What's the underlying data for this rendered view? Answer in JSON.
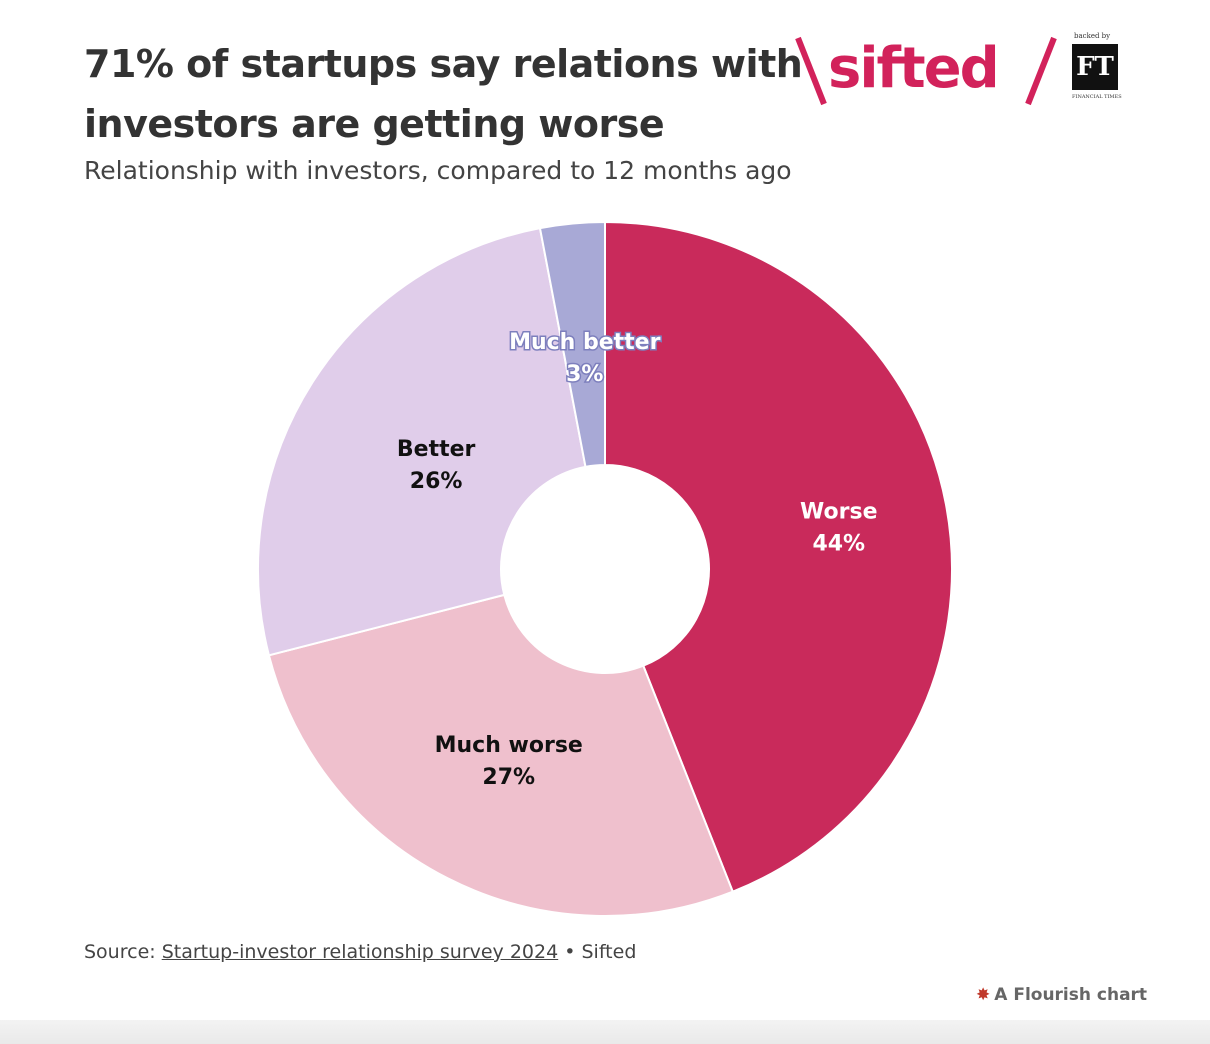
{
  "header": {
    "title": "71% of startups say relations with investors are getting worse",
    "subtitle": "Relationship with investors, compared to 12 months ago"
  },
  "brand": {
    "wordmark": "sifted",
    "backed_by": "backed by",
    "ft_logo": "FT",
    "ft_caption": "FINANCIAL TIMES",
    "color": "#d2225b"
  },
  "chart_data": {
    "type": "pie",
    "donut": true,
    "unit": "%",
    "slices": [
      {
        "label": "Worse",
        "value": 44,
        "value_label": "44%",
        "color": "#c92a5b",
        "text_color": "#ffffff"
      },
      {
        "label": "Much worse",
        "value": 27,
        "value_label": "27%",
        "color": "#efc0cd",
        "text_color": "#111111"
      },
      {
        "label": "Better",
        "value": 26,
        "value_label": "26%",
        "color": "#e0cdea",
        "text_color": "#111111"
      },
      {
        "label": "Much better",
        "value": 3,
        "value_label": "3%",
        "color": "#a8a9d6",
        "text_color": "#ffffff"
      }
    ],
    "legend": "none"
  },
  "footer": {
    "source_prefix": "Source: ",
    "source_link": "Startup-investor relationship survey 2024",
    "source_suffix": " • Sifted",
    "credit": "A Flourish chart"
  }
}
